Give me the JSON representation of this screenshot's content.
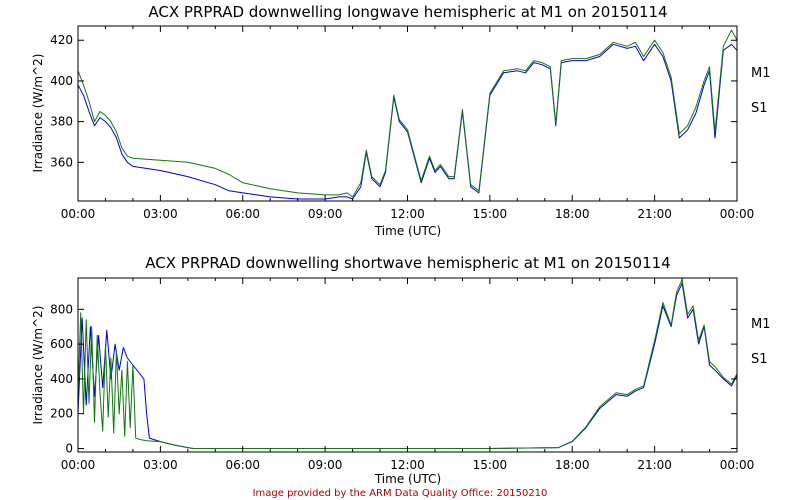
{
  "footer": "Image provided by the ARM Data Quality Office: 20150210",
  "chart_data": [
    {
      "type": "line",
      "title": "ACX PRPRAD downwelling longwave hemispheric at M1 on 20150114",
      "xlabel": "Time (UTC)",
      "ylabel": "Irradiance (W/m^2)",
      "x_unit": "hours UTC",
      "xlim": [
        0,
        24
      ],
      "ylim": [
        341,
        427
      ],
      "yticks": [
        360,
        380,
        400,
        420
      ],
      "xtick_labels": [
        "00:00",
        "03:00",
        "06:00",
        "09:00",
        "12:00",
        "15:00",
        "18:00",
        "21:00",
        "00:00"
      ],
      "grid": false,
      "legend": "right",
      "series": [
        {
          "name": "M1",
          "color": "#0000cc",
          "x": [
            0,
            0.2,
            0.4,
            0.6,
            0.8,
            1.0,
            1.2,
            1.4,
            1.6,
            1.8,
            2.0,
            3.0,
            4.0,
            5.0,
            5.5,
            6.0,
            7.0,
            8.0,
            9.0,
            9.5,
            9.8,
            10.0,
            10.3,
            10.5,
            10.7,
            11.0,
            11.2,
            11.5,
            11.7,
            12.0,
            12.3,
            12.5,
            12.8,
            13.0,
            13.2,
            13.5,
            13.7,
            14.0,
            14.3,
            14.6,
            15.0,
            15.5,
            16.0,
            16.3,
            16.6,
            16.9,
            17.2,
            17.4,
            17.6,
            18.0,
            18.5,
            19.0,
            19.5,
            20.0,
            20.3,
            20.6,
            21.0,
            21.3,
            21.6,
            21.9,
            22.2,
            22.5,
            22.8,
            23.0,
            23.2,
            23.5,
            23.8,
            24.0
          ],
          "values": [
            398,
            393,
            385,
            378,
            382,
            380,
            377,
            372,
            364,
            360,
            358,
            356,
            353,
            349,
            346,
            345,
            343,
            342,
            342,
            343,
            343,
            342,
            348,
            365,
            352,
            348,
            355,
            392,
            380,
            375,
            360,
            350,
            362,
            355,
            358,
            352,
            352,
            385,
            348,
            345,
            393,
            404,
            405,
            404,
            409,
            408,
            406,
            378,
            409,
            410,
            410,
            412,
            418,
            416,
            417,
            410,
            418,
            412,
            400,
            372,
            376,
            384,
            398,
            405,
            372,
            415,
            418,
            415
          ]
        },
        {
          "name": "S1",
          "color": "#117711",
          "x": [
            0,
            0.2,
            0.4,
            0.6,
            0.8,
            1.0,
            1.2,
            1.4,
            1.6,
            1.8,
            2.0,
            3.0,
            4.0,
            5.0,
            5.5,
            6.0,
            7.0,
            8.0,
            9.0,
            9.5,
            9.8,
            10.0,
            10.3,
            10.5,
            10.7,
            11.0,
            11.2,
            11.5,
            11.7,
            12.0,
            12.3,
            12.5,
            12.8,
            13.0,
            13.2,
            13.5,
            13.7,
            14.0,
            14.3,
            14.6,
            15.0,
            15.5,
            16.0,
            16.3,
            16.6,
            16.9,
            17.2,
            17.4,
            17.6,
            18.0,
            18.5,
            19.0,
            19.5,
            20.0,
            20.3,
            20.6,
            21.0,
            21.3,
            21.6,
            21.9,
            22.2,
            22.5,
            22.8,
            23.0,
            23.2,
            23.5,
            23.8,
            24.0
          ],
          "values": [
            405,
            398,
            390,
            380,
            385,
            383,
            380,
            375,
            367,
            363,
            362,
            361,
            360,
            357,
            354,
            350,
            347,
            345,
            344,
            344,
            345,
            343,
            350,
            366,
            353,
            349,
            356,
            393,
            381,
            376,
            361,
            351,
            363,
            356,
            359,
            353,
            353,
            386,
            349,
            346,
            394,
            405,
            406,
            405,
            410,
            409,
            407,
            379,
            410,
            411,
            411,
            413,
            419,
            417,
            419,
            412,
            420,
            414,
            402,
            374,
            378,
            387,
            400,
            407,
            375,
            417,
            425,
            420
          ]
        }
      ]
    },
    {
      "type": "line",
      "title": "ACX PRPRAD downwelling shortwave hemispheric at M1 on 20150114",
      "xlabel": "Time (UTC)",
      "ylabel": "Irradiance (W/m^2)",
      "x_unit": "hours UTC",
      "xlim": [
        0,
        24
      ],
      "ylim": [
        -20,
        980
      ],
      "yticks": [
        0,
        200,
        400,
        600,
        800
      ],
      "xtick_labels": [
        "00:00",
        "03:00",
        "06:00",
        "09:00",
        "12:00",
        "15:00",
        "18:00",
        "21:00",
        "00:00"
      ],
      "grid": false,
      "legend": "right",
      "series": [
        {
          "name": "M1",
          "color": "#0000cc",
          "x": [
            0,
            0.15,
            0.3,
            0.45,
            0.6,
            0.75,
            0.9,
            1.05,
            1.2,
            1.35,
            1.5,
            1.65,
            1.8,
            2.0,
            2.2,
            2.4,
            2.5,
            2.6,
            3.0,
            3.5,
            4.0,
            4.2,
            5.0,
            10.0,
            15.0,
            17.5,
            18.0,
            18.5,
            19.0,
            19.3,
            19.6,
            20.0,
            20.3,
            20.6,
            21.0,
            21.3,
            21.6,
            21.8,
            22.0,
            22.2,
            22.4,
            22.6,
            22.8,
            23.0,
            23.2,
            23.5,
            23.8,
            24.0
          ],
          "values": [
            200,
            750,
            250,
            700,
            300,
            650,
            350,
            680,
            400,
            600,
            450,
            580,
            520,
            480,
            440,
            400,
            200,
            60,
            40,
            20,
            5,
            0,
            0,
            0,
            0,
            5,
            40,
            120,
            230,
            270,
            310,
            300,
            330,
            350,
            600,
            820,
            700,
            880,
            950,
            750,
            800,
            600,
            700,
            480,
            450,
            400,
            360,
            420
          ]
        },
        {
          "name": "S1",
          "color": "#117711",
          "x": [
            0,
            0.1,
            0.2,
            0.3,
            0.4,
            0.5,
            0.6,
            0.7,
            0.8,
            0.9,
            1.0,
            1.1,
            1.2,
            1.3,
            1.4,
            1.5,
            1.6,
            1.7,
            1.8,
            1.9,
            2.0,
            2.1,
            2.3,
            2.5,
            3.0,
            3.5,
            4.0,
            4.2,
            5.0,
            10.0,
            15.0,
            17.5,
            18.0,
            18.5,
            19.0,
            19.3,
            19.6,
            20.0,
            20.3,
            20.6,
            21.0,
            21.3,
            21.6,
            21.8,
            22.0,
            22.2,
            22.4,
            22.6,
            22.8,
            23.0,
            23.2,
            23.5,
            23.8,
            24.0
          ],
          "values": [
            300,
            780,
            200,
            740,
            260,
            700,
            150,
            650,
            320,
            100,
            600,
            180,
            520,
            90,
            560,
            200,
            450,
            70,
            500,
            120,
            480,
            60,
            50,
            45,
            40,
            20,
            5,
            0,
            0,
            0,
            0,
            5,
            42,
            125,
            240,
            280,
            320,
            310,
            340,
            360,
            620,
            840,
            710,
            900,
            970,
            770,
            820,
            620,
            710,
            500,
            470,
            410,
            370,
            430
          ]
        }
      ]
    }
  ]
}
